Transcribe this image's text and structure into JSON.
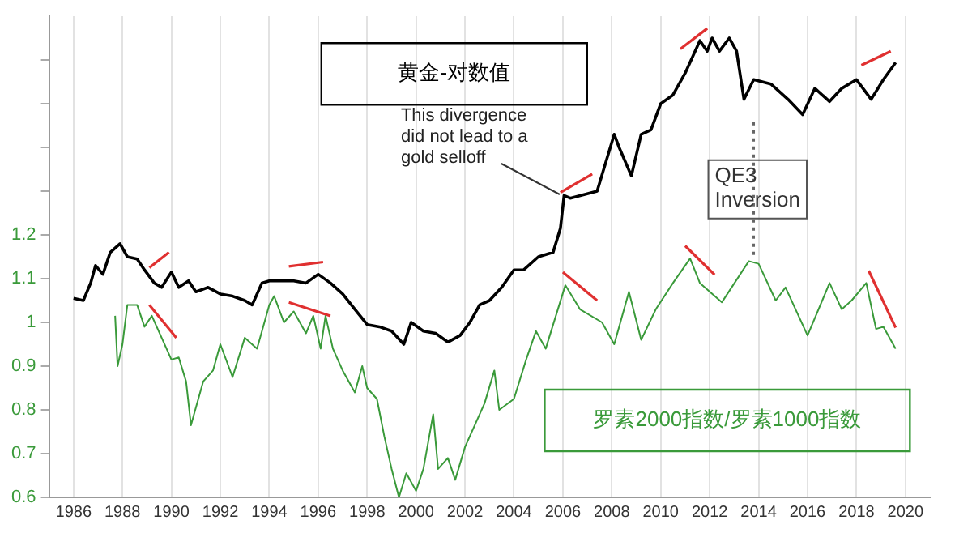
{
  "chart_data": {
    "type": "line",
    "xlim": [
      1985,
      2021
    ],
    "xticks": [
      1986,
      1988,
      1990,
      1992,
      1994,
      1996,
      1998,
      2000,
      2002,
      2004,
      2006,
      2008,
      2010,
      2012,
      2014,
      2016,
      2018,
      2020
    ],
    "ylim": [
      0.6,
      1.7
    ],
    "yticks": [
      0.6,
      0.7,
      0.8,
      0.9,
      1,
      1.1,
      1.2,
      {
        "value": 1.3,
        "label": null
      },
      {
        "value": 1.4,
        "label": null
      },
      {
        "value": 1.5,
        "label": null
      },
      {
        "value": 1.6,
        "label": null
      }
    ],
    "grid": "x",
    "legend": false,
    "marker": "none",
    "line_style": "solid",
    "series": [
      {
        "name": "黄金-对数值",
        "color": "#000000",
        "x": [
          1986.0,
          1986.4,
          1986.7,
          1986.9,
          1987.2,
          1987.5,
          1987.9,
          1988.2,
          1988.6,
          1988.9,
          1989.3,
          1989.6,
          1990.0,
          1990.3,
          1990.7,
          1991.0,
          1991.5,
          1992.0,
          1992.5,
          1993.0,
          1993.3,
          1993.7,
          1994.0,
          1994.5,
          1995.0,
          1995.5,
          1996.0,
          1996.5,
          1997.0,
          1997.5,
          1998.0,
          1998.5,
          1999.0,
          1999.5,
          1999.8,
          2000.3,
          2000.8,
          2001.3,
          2001.8,
          2002.2,
          2002.6,
          2003.0,
          2003.5,
          2004.0,
          2004.4,
          2005.0,
          2005.6,
          2005.9,
          2006.05,
          2006.3,
          2007.4,
          2008.1,
          2008.3,
          2008.8,
          2009.2,
          2009.6,
          2010.0,
          2010.5,
          2011.0,
          2011.6,
          2011.9,
          2012.1,
          2012.4,
          2012.8,
          2013.1,
          2013.4,
          2013.8,
          2014.5,
          2015.2,
          2015.8,
          2016.3,
          2016.9,
          2017.4,
          2018.0,
          2018.6,
          2019.1,
          2019.6
        ],
        "values": [
          1.055,
          1.05,
          1.09,
          1.13,
          1.11,
          1.16,
          1.18,
          1.15,
          1.145,
          1.12,
          1.09,
          1.08,
          1.115,
          1.08,
          1.095,
          1.07,
          1.08,
          1.065,
          1.06,
          1.05,
          1.04,
          1.09,
          1.095,
          1.095,
          1.095,
          1.09,
          1.11,
          1.09,
          1.065,
          1.03,
          0.995,
          0.99,
          0.98,
          0.95,
          1.0,
          0.98,
          0.975,
          0.955,
          0.97,
          1.0,
          1.04,
          1.05,
          1.08,
          1.12,
          1.12,
          1.15,
          1.16,
          1.215,
          1.29,
          1.284,
          1.3,
          1.43,
          1.4,
          1.335,
          1.43,
          1.44,
          1.5,
          1.52,
          1.57,
          1.644,
          1.62,
          1.65,
          1.62,
          1.65,
          1.62,
          1.51,
          1.555,
          1.545,
          1.51,
          1.475,
          1.535,
          1.505,
          1.535,
          1.555,
          1.51,
          1.555,
          1.594
        ]
      },
      {
        "name": "罗素2000指数/罗素1000指数",
        "color": "#3a9a3a",
        "x": [
          1987.7,
          1987.8,
          1988.0,
          1988.2,
          1988.6,
          1988.9,
          1989.2,
          1989.6,
          1990.0,
          1990.3,
          1990.6,
          1990.8,
          1991.3,
          1991.7,
          1992.0,
          1992.5,
          1993.0,
          1993.5,
          1994.0,
          1994.2,
          1994.6,
          1995.0,
          1995.5,
          1995.8,
          1996.1,
          1996.3,
          1996.6,
          1997.0,
          1997.5,
          1997.8,
          1998.0,
          1998.4,
          1998.7,
          1999.0,
          1999.3,
          1999.6,
          2000.0,
          2000.3,
          2000.7,
          2000.9,
          2001.3,
          2001.6,
          2002.0,
          2002.4,
          2002.8,
          2003.2,
          2003.4,
          2004.0,
          2004.5,
          2004.9,
          2005.3,
          2006.1,
          2006.7,
          2007.6,
          2008.1,
          2008.7,
          2009.2,
          2009.8,
          2010.5,
          2011.2,
          2011.6,
          2012.5,
          2013.6,
          2014.0,
          2014.7,
          2015.1,
          2016.0,
          2016.9,
          2017.4,
          2017.8,
          2018.4,
          2018.8,
          2019.1,
          2019.6
        ],
        "values": [
          1.015,
          0.9,
          0.95,
          1.04,
          1.04,
          0.99,
          1.015,
          0.965,
          0.915,
          0.92,
          0.865,
          0.765,
          0.865,
          0.89,
          0.95,
          0.875,
          0.965,
          0.94,
          1.04,
          1.06,
          1.0,
          1.025,
          0.975,
          1.015,
          0.94,
          1.015,
          0.94,
          0.89,
          0.84,
          0.9,
          0.85,
          0.825,
          0.74,
          0.665,
          0.6,
          0.655,
          0.615,
          0.665,
          0.79,
          0.665,
          0.69,
          0.64,
          0.715,
          0.765,
          0.815,
          0.89,
          0.8,
          0.825,
          0.915,
          0.98,
          0.94,
          1.085,
          1.03,
          1.0,
          0.95,
          1.07,
          0.96,
          1.03,
          1.09,
          1.146,
          1.09,
          1.046,
          1.14,
          1.134,
          1.05,
          1.08,
          0.97,
          1.09,
          1.03,
          1.05,
          1.09,
          0.985,
          0.99,
          0.94
        ]
      },
      {
        "color": "#e03030",
        "x": [
          1989.1,
          1989.9
        ],
        "values": [
          1.125,
          1.16
        ]
      },
      {
        "color": "#e03030",
        "x": [
          1989.1,
          1990.2
        ],
        "values": [
          1.04,
          0.965
        ]
      },
      {
        "color": "#e03030",
        "x": [
          1994.8,
          1996.2
        ],
        "values": [
          1.128,
          1.138
        ]
      },
      {
        "color": "#e03030",
        "x": [
          1994.8,
          1996.5
        ],
        "values": [
          1.046,
          1.015
        ]
      },
      {
        "color": "#e03030",
        "x": [
          2005.9,
          2007.2
        ],
        "values": [
          1.297,
          1.339
        ]
      },
      {
        "color": "#e03030",
        "x": [
          2006.0,
          2007.4
        ],
        "values": [
          1.115,
          1.05
        ]
      },
      {
        "color": "#e03030",
        "x": [
          2010.8,
          2011.9
        ],
        "values": [
          1.625,
          1.672
        ]
      },
      {
        "color": "#e03030",
        "x": [
          2011.0,
          2012.2
        ],
        "values": [
          1.175,
          1.109
        ]
      },
      {
        "color": "#e03030",
        "x": [
          2018.2,
          2019.4
        ],
        "values": [
          1.588,
          1.62
        ]
      },
      {
        "color": "#e03030",
        "x": [
          2018.5,
          2019.6
        ],
        "values": [
          1.118,
          0.988
        ]
      }
    ],
    "ref_lines": [
      {
        "axis": "x",
        "value": 2013.8,
        "label": "QE3 Inversion",
        "line_style": "dotted",
        "color": "#666666"
      }
    ],
    "annotations": [
      {
        "text": "This divergence did not lead to a gold selloff",
        "x": 2006.0,
        "y": 1.3
      }
    ]
  }
}
